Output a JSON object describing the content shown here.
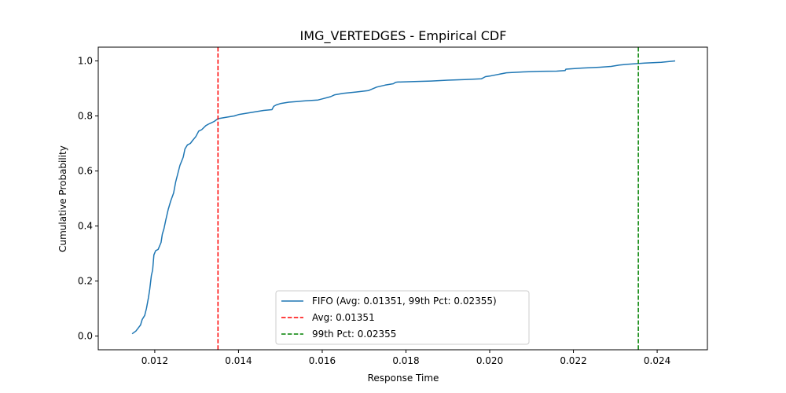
{
  "chart_data": {
    "type": "line",
    "title": "IMG_VERTEDGES - Empirical CDF",
    "xlabel": "Response Time",
    "ylabel": "Cumulative Probability",
    "xlim": [
      0.01065,
      0.0252
    ],
    "ylim": [
      -0.05,
      1.05
    ],
    "x_ticks": [
      0.012,
      0.014,
      0.016,
      0.018,
      0.02,
      0.022,
      0.024
    ],
    "x_tick_labels": [
      "0.012",
      "0.014",
      "0.016",
      "0.018",
      "0.020",
      "0.022",
      "0.024"
    ],
    "y_ticks": [
      0.0,
      0.2,
      0.4,
      0.6,
      0.8,
      1.0
    ],
    "y_tick_labels": [
      "0.0",
      "0.2",
      "0.4",
      "0.6",
      "0.8",
      "1.0"
    ],
    "grid": false,
    "legend_position": "lower-center",
    "series": [
      {
        "name": "FIFO (Avg: 0.01351, 99th Pct: 0.02355)",
        "color": "#1f77b4",
        "style": "solid",
        "x": [
          0.01146,
          0.01155,
          0.0116,
          0.01166,
          0.0117,
          0.01176,
          0.0118,
          0.01185,
          0.01188,
          0.01192,
          0.01195,
          0.01198,
          0.01202,
          0.01208,
          0.01215,
          0.01218,
          0.01222,
          0.01226,
          0.01232,
          0.01238,
          0.01245,
          0.0125,
          0.01255,
          0.0126,
          0.01268,
          0.01272,
          0.01278,
          0.01285,
          0.0129,
          0.01298,
          0.01305,
          0.01312,
          0.01322,
          0.01328,
          0.01335,
          0.01342,
          0.01351,
          0.0137,
          0.0139,
          0.014,
          0.0142,
          0.0144,
          0.0146,
          0.0148,
          0.01484,
          0.0149,
          0.015,
          0.0152,
          0.0156,
          0.0159,
          0.016,
          0.0162,
          0.0163,
          0.0165,
          0.0168,
          0.0171,
          0.0173,
          0.0175,
          0.0177,
          0.01775,
          0.0178,
          0.0182,
          0.0186,
          0.019,
          0.0194,
          0.0198,
          0.0199,
          0.02,
          0.0204,
          0.0208,
          0.0212,
          0.0216,
          0.0218,
          0.02182,
          0.0222,
          0.0226,
          0.0229,
          0.0231,
          0.0233,
          0.0237,
          0.0241,
          0.02443
        ],
        "y": [
          0.008,
          0.018,
          0.028,
          0.04,
          0.06,
          0.075,
          0.1,
          0.14,
          0.17,
          0.22,
          0.24,
          0.295,
          0.31,
          0.315,
          0.34,
          0.37,
          0.39,
          0.42,
          0.46,
          0.49,
          0.52,
          0.56,
          0.59,
          0.62,
          0.65,
          0.68,
          0.695,
          0.7,
          0.71,
          0.725,
          0.745,
          0.75,
          0.765,
          0.77,
          0.775,
          0.78,
          0.79,
          0.795,
          0.8,
          0.805,
          0.81,
          0.815,
          0.82,
          0.823,
          0.835,
          0.84,
          0.845,
          0.85,
          0.855,
          0.858,
          0.862,
          0.87,
          0.877,
          0.882,
          0.887,
          0.892,
          0.905,
          0.912,
          0.917,
          0.922,
          0.923,
          0.925,
          0.927,
          0.93,
          0.932,
          0.935,
          0.943,
          0.945,
          0.957,
          0.96,
          0.962,
          0.963,
          0.965,
          0.97,
          0.974,
          0.977,
          0.98,
          0.985,
          0.988,
          0.992,
          0.995,
          1.0
        ]
      }
    ],
    "vlines": [
      {
        "name": "Avg: 0.01351",
        "x": 0.01351,
        "color": "#ff0000",
        "style": "dashed"
      },
      {
        "name": "99th Pct: 0.02355",
        "x": 0.02355,
        "color": "#008000",
        "style": "dashed"
      }
    ]
  }
}
